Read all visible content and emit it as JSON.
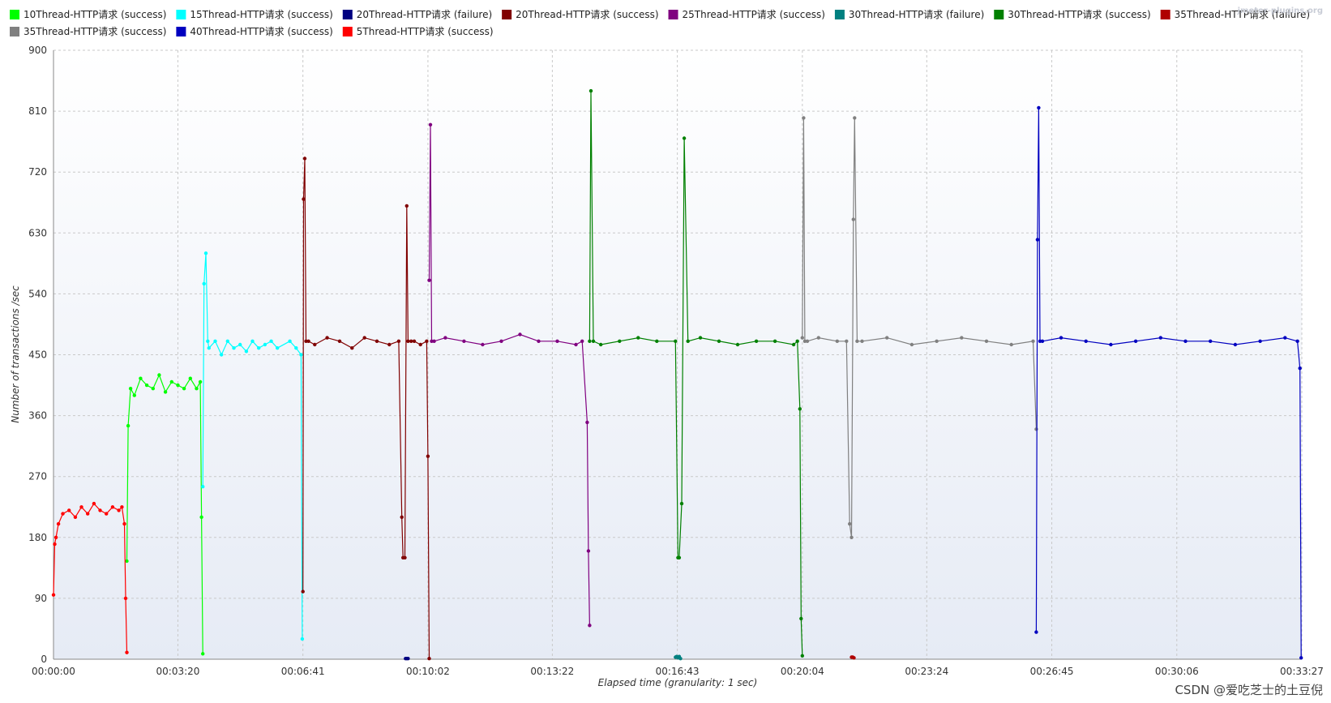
{
  "chart_data": {
    "type": "line",
    "title": "",
    "watermark": "jmeter-plugins.org",
    "credit": "CSDN @爱吃芝士的土豆倪",
    "xlabel": "Elapsed time (granularity: 1 sec)",
    "ylabel": "Number of transactions /sec",
    "xlim": [
      0,
      2007
    ],
    "ylim": [
      0,
      900
    ],
    "y_ticks": [
      0,
      90,
      180,
      270,
      360,
      450,
      540,
      630,
      720,
      810,
      900
    ],
    "x_ticks": [
      {
        "value": 0,
        "label": "00:00:00"
      },
      {
        "value": 200,
        "label": "00:03:20"
      },
      {
        "value": 401,
        "label": "00:06:41"
      },
      {
        "value": 602,
        "label": "00:10:02"
      },
      {
        "value": 802,
        "label": "00:13:22"
      },
      {
        "value": 1003,
        "label": "00:16:43"
      },
      {
        "value": 1204,
        "label": "00:20:04"
      },
      {
        "value": 1404,
        "label": "00:23:24"
      },
      {
        "value": 1605,
        "label": "00:26:45"
      },
      {
        "value": 1806,
        "label": "00:30:06"
      },
      {
        "value": 2007,
        "label": "00:33:27"
      }
    ],
    "series": [
      {
        "name": "10Thread-HTTP请求 (success)",
        "color": "#00ff00",
        "x": [
          118,
          120,
          124,
          130,
          140,
          150,
          160,
          170,
          180,
          190,
          200,
          210,
          220,
          230,
          236,
          238,
          240
        ],
        "y": [
          145,
          345,
          400,
          390,
          415,
          405,
          400,
          420,
          395,
          410,
          405,
          400,
          415,
          400,
          410,
          210,
          8
        ]
      },
      {
        "name": "15Thread-HTTP请求 (success)",
        "color": "#00ffff",
        "x": [
          240,
          242,
          245,
          248,
          250,
          260,
          270,
          280,
          290,
          300,
          310,
          320,
          330,
          340,
          350,
          360,
          380,
          390,
          398,
          400
        ],
        "y": [
          255,
          555,
          600,
          470,
          460,
          470,
          450,
          470,
          460,
          465,
          455,
          470,
          460,
          465,
          470,
          460,
          470,
          460,
          450,
          30
        ]
      },
      {
        "name": "20Thread-HTTP请求 (failure)",
        "color": "#000080",
        "x": [
          566,
          568,
          570
        ],
        "y": [
          1,
          1,
          1
        ]
      },
      {
        "name": "20Thread-HTTP请求 (success)",
        "color": "#800000",
        "x": [
          401,
          402,
          404,
          406,
          410,
          420,
          440,
          460,
          480,
          500,
          520,
          540,
          555,
          560,
          562,
          565,
          568,
          570,
          575,
          580,
          590,
          600,
          602,
          604
        ],
        "y": [
          100,
          680,
          740,
          470,
          470,
          465,
          475,
          470,
          460,
          475,
          470,
          465,
          470,
          210,
          150,
          150,
          670,
          470,
          470,
          470,
          465,
          470,
          300,
          1
        ]
      },
      {
        "name": "25Thread-HTTP请求 (success)",
        "color": "#800080",
        "x": [
          604,
          606,
          608,
          612,
          630,
          660,
          690,
          720,
          750,
          780,
          810,
          840,
          850,
          858,
          860,
          862
        ],
        "y": [
          560,
          790,
          470,
          470,
          475,
          470,
          465,
          470,
          480,
          470,
          470,
          465,
          470,
          350,
          160,
          50
        ]
      },
      {
        "name": "30Thread-HTTP请求 (failure)",
        "color": "#008080",
        "x": [
          1000,
          1002,
          1004,
          1006,
          1008
        ],
        "y": [
          3,
          4,
          2,
          4,
          1
        ]
      },
      {
        "name": "30Thread-HTTP请求 (success)",
        "color": "#008000",
        "x": [
          862,
          864,
          868,
          880,
          910,
          940,
          970,
          1000,
          1004,
          1006,
          1010,
          1014,
          1020,
          1040,
          1070,
          1100,
          1130,
          1160,
          1190,
          1196,
          1200,
          1202,
          1204
        ],
        "y": [
          470,
          840,
          470,
          465,
          470,
          475,
          470,
          470,
          150,
          150,
          230,
          770,
          470,
          475,
          470,
          465,
          470,
          470,
          465,
          470,
          370,
          60,
          5
        ]
      },
      {
        "name": "35Thread-HTTP请求 (failure)",
        "color": "#b00000",
        "x": [
          1283,
          1285,
          1287
        ],
        "y": [
          3,
          3,
          2
        ]
      },
      {
        "name": "35Thread-HTTP请求 (success)",
        "color": "#808080",
        "x": [
          1204,
          1206,
          1208,
          1212,
          1230,
          1260,
          1275,
          1280,
          1283,
          1286,
          1288,
          1292,
          1300,
          1340,
          1380,
          1420,
          1460,
          1500,
          1540,
          1575,
          1580
        ],
        "y": [
          475,
          800,
          470,
          470,
          475,
          470,
          470,
          200,
          180,
          650,
          800,
          470,
          470,
          475,
          465,
          470,
          475,
          470,
          465,
          470,
          340
        ]
      },
      {
        "name": "40Thread-HTTP请求 (success)",
        "color": "#0000c0",
        "x": [
          1580,
          1582,
          1584,
          1586,
          1590,
          1620,
          1660,
          1700,
          1740,
          1780,
          1820,
          1860,
          1900,
          1940,
          1980,
          2000,
          2004,
          2006
        ],
        "y": [
          40,
          620,
          815,
          470,
          470,
          475,
          470,
          465,
          470,
          475,
          470,
          470,
          465,
          470,
          475,
          470,
          430,
          2
        ]
      },
      {
        "name": "5Thread-HTTP请求 (success)",
        "color": "#ff0000",
        "x": [
          0,
          2,
          4,
          8,
          15,
          25,
          35,
          45,
          55,
          65,
          75,
          85,
          95,
          105,
          110,
          114,
          116,
          118
        ],
        "y": [
          95,
          170,
          180,
          200,
          215,
          220,
          210,
          225,
          215,
          230,
          220,
          215,
          225,
          220,
          225,
          200,
          90,
          10
        ]
      }
    ]
  }
}
